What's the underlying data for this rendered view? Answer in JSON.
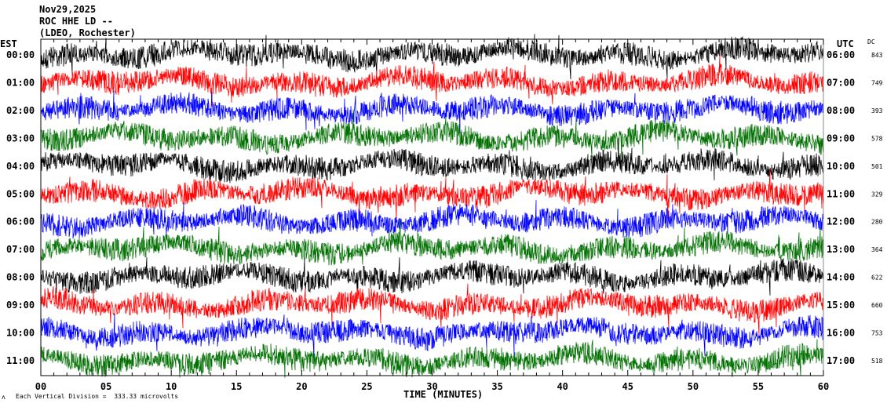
{
  "chart_data": {
    "type": "line",
    "title_lines": [
      "Nov29,2025",
      "ROC HHE LD --",
      "(LDEO, Rochester)"
    ],
    "left_axis_label": "EST",
    "right_axis_label": "UTC",
    "dc_label": "DC",
    "xlabel": "TIME (MINUTES)",
    "xlim": [
      0,
      60
    ],
    "x_ticks": [
      "00",
      "05",
      "10",
      "15",
      "20",
      "25",
      "30",
      "35",
      "40",
      "45",
      "50",
      "55",
      "60"
    ],
    "left_ticks": [
      "00:00",
      "01:00",
      "02:00",
      "03:00",
      "04:00",
      "05:00",
      "06:00",
      "07:00",
      "08:00",
      "09:00",
      "10:00",
      "11:00"
    ],
    "right_ticks": [
      "06:00",
      "07:00",
      "08:00",
      "09:00",
      "10:00",
      "11:00",
      "12:00",
      "13:00",
      "14:00",
      "15:00",
      "16:00",
      "17:00"
    ],
    "dc_values": [
      "843",
      "749",
      "393",
      "578",
      "501",
      "329",
      "280",
      "364",
      "622",
      "660",
      "753",
      "518"
    ],
    "trace_colors": [
      "#000000",
      "#ff0000",
      "#0000ff",
      "#007000"
    ],
    "footer_note": "Each Vertical Division =  333.33 microvolts",
    "footer_symbol": "ʌ"
  }
}
